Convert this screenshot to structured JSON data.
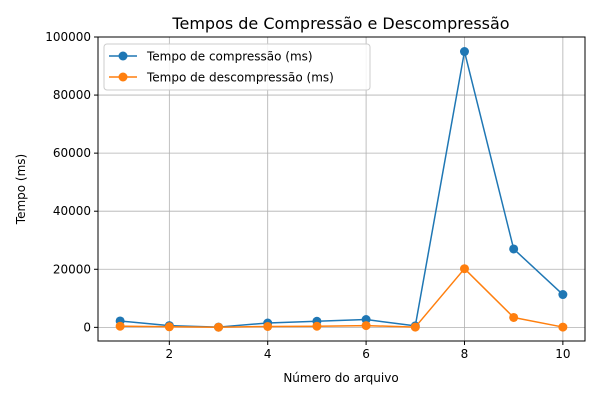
{
  "chart_data": {
    "type": "line",
    "title": "Tempos de Compressão e Descompressão",
    "xlabel": "Número do arquivo",
    "ylabel": "Tempo (ms)",
    "x": [
      1,
      2,
      3,
      4,
      5,
      6,
      7,
      8,
      9,
      10
    ],
    "xlim": [
      0.55,
      10.45
    ],
    "ylim": [
      -4700,
      100000
    ],
    "xticks": [
      2,
      4,
      6,
      8,
      10
    ],
    "yticks": [
      0,
      20000,
      40000,
      60000,
      80000,
      100000
    ],
    "grid": true,
    "legend_position": "top-left",
    "series": [
      {
        "name": "Tempo de compressão (ms)",
        "color": "#1f77b4",
        "values": [
          2200,
          600,
          100,
          1500,
          2100,
          2700,
          500,
          95000,
          27000,
          11300
        ]
      },
      {
        "name": "Tempo de descompressão (ms)",
        "color": "#ff7f0e",
        "values": [
          400,
          200,
          50,
          300,
          400,
          600,
          100,
          20200,
          3400,
          100
        ]
      }
    ]
  }
}
